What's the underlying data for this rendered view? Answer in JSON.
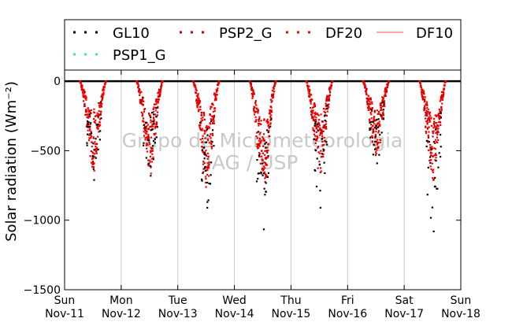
{
  "chart_data": {
    "type": "scatter",
    "ylabel": "Solar radiation (Wm⁻²)",
    "ylim": [
      -1500,
      80
    ],
    "yticks": [
      0,
      -500,
      -1000,
      -1500
    ],
    "ytick_labels": [
      "0",
      "−500",
      "−1000",
      "−1500"
    ],
    "x_unit": "days",
    "xlim": [
      0,
      7
    ],
    "xticks": [
      {
        "x": 0,
        "day": "Sun",
        "date": "Nov-11"
      },
      {
        "x": 1,
        "day": "Mon",
        "date": "Nov-12"
      },
      {
        "x": 2,
        "day": "Tue",
        "date": "Nov-13"
      },
      {
        "x": 3,
        "day": "Wed",
        "date": "Nov-14"
      },
      {
        "x": 4,
        "day": "Thu",
        "date": "Nov-15"
      },
      {
        "x": 5,
        "day": "Fri",
        "date": "Nov-16"
      },
      {
        "x": 6,
        "day": "Sat",
        "date": "Nov-17"
      },
      {
        "x": 7,
        "day": "Sun",
        "date": "Nov-18"
      }
    ],
    "grid": "vertical",
    "legend_position": "top",
    "watermark": [
      "Grupo de Micrometeorologia",
      "IAG / USP"
    ],
    "series": [
      {
        "name": "GL10",
        "style": "dots",
        "color": "#000000"
      },
      {
        "name": "PSP2_G",
        "style": "dots",
        "color": "#cc0000"
      },
      {
        "name": "DF20",
        "style": "dots",
        "color": "#ff0000"
      },
      {
        "name": "DF10",
        "style": "line",
        "color": "#ff7070"
      },
      {
        "name": "PSP1_G",
        "style": "dots",
        "color": "#40e0d0"
      }
    ],
    "daily_minimum_approx": [
      {
        "day": 0,
        "GL10": -710,
        "red": -640
      },
      {
        "day": 1,
        "GL10": -680,
        "red": -650
      },
      {
        "day": 2,
        "GL10": -910,
        "red": -720
      },
      {
        "day": 3,
        "GL10": -1065,
        "red": -800
      },
      {
        "day": 4,
        "GL10": -910,
        "red": -680
      },
      {
        "day": 5,
        "GL10": -590,
        "red": -560
      },
      {
        "day": 6,
        "GL10": -1080,
        "red": -730
      }
    ],
    "night_value": 0
  }
}
